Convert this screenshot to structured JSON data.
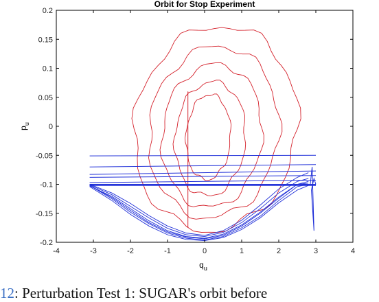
{
  "chart_data": {
    "type": "line",
    "title": "Orbit for Stop Experiment",
    "xlabel": "q",
    "xlabel_sub": "u",
    "ylabel": "p",
    "ylabel_sub": "u",
    "xlim": [
      -4,
      4
    ],
    "ylim": [
      -0.2,
      0.2
    ],
    "xticks": [
      "-4",
      "-3",
      "-2",
      "-1",
      "0",
      "1",
      "2",
      "3",
      "4"
    ],
    "yticks": [
      "-0.2",
      "-0.15",
      "-0.1",
      "-0.05",
      "0",
      "0.05",
      "0.1",
      "0.15",
      "0.2"
    ],
    "grid": false,
    "series_colors": {
      "red": "#d4202a",
      "blue": "#1f2fd8"
    },
    "red_orbits": [
      {
        "center": [
          0.3,
          -0.005
        ],
        "rx": 2.2,
        "ry_top": 0.178,
        "ry_bottom": 0.175
      },
      {
        "center": [
          0.25,
          -0.01
        ],
        "rx": 1.75,
        "ry_top": 0.148,
        "ry_bottom": 0.148
      },
      {
        "center": [
          0.2,
          -0.015
        ],
        "rx": 1.35,
        "ry_top": 0.122,
        "ry_bottom": 0.125
      },
      {
        "center": [
          0.15,
          -0.02
        ],
        "rx": 0.95,
        "ry_top": 0.097,
        "ry_bottom": 0.1
      },
      {
        "center": [
          0.1,
          -0.02
        ],
        "rx": 0.6,
        "ry_top": 0.075,
        "ry_bottom": 0.072
      }
    ],
    "red_vertical_segment": {
      "x": -0.45,
      "y": [
        -0.175,
        0.06
      ]
    },
    "blue_valley_curves": [
      {
        "x": [
          -3.1,
          -2.5,
          -2.0,
          -1.5,
          -1.0,
          -0.5,
          0.0,
          0.5,
          1.0,
          1.5,
          2.0,
          2.5,
          2.8
        ],
        "y": [
          -0.102,
          -0.125,
          -0.148,
          -0.168,
          -0.184,
          -0.193,
          -0.196,
          -0.19,
          -0.175,
          -0.155,
          -0.128,
          -0.104,
          -0.1
        ]
      },
      {
        "x": [
          -3.1,
          -2.5,
          -2.0,
          -1.5,
          -1.0,
          -0.5,
          0.0,
          0.5,
          1.0,
          1.5,
          2.0,
          2.5,
          2.8
        ],
        "y": [
          -0.103,
          -0.121,
          -0.142,
          -0.163,
          -0.18,
          -0.19,
          -0.193,
          -0.186,
          -0.17,
          -0.148,
          -0.122,
          -0.1,
          -0.098
        ]
      },
      {
        "x": [
          -3.1,
          -2.5,
          -2.0,
          -1.5,
          -1.0,
          -0.5,
          0.0,
          0.5,
          1.0,
          1.5,
          2.0,
          2.5,
          2.8
        ],
        "y": [
          -0.101,
          -0.118,
          -0.138,
          -0.158,
          -0.176,
          -0.187,
          -0.19,
          -0.183,
          -0.166,
          -0.142,
          -0.115,
          -0.095,
          -0.09
        ]
      },
      {
        "x": [
          -3.1,
          -2.5,
          -2.0,
          -1.5,
          -1.0,
          -0.5,
          0.0,
          0.5,
          1.0,
          1.5,
          2.0,
          2.5,
          2.8
        ],
        "y": [
          -0.104,
          -0.128,
          -0.152,
          -0.172,
          -0.187,
          -0.195,
          -0.197,
          -0.192,
          -0.178,
          -0.158,
          -0.132,
          -0.11,
          -0.102
        ]
      },
      {
        "x": [
          -3.1,
          -2.5,
          -2.0,
          -1.5,
          -1.0,
          -0.5,
          0.0,
          0.5,
          1.0,
          1.5,
          2.0,
          2.5,
          2.8
        ],
        "y": [
          -0.1,
          -0.115,
          -0.133,
          -0.154,
          -0.172,
          -0.184,
          -0.188,
          -0.18,
          -0.162,
          -0.136,
          -0.108,
          -0.088,
          -0.08
        ]
      },
      {
        "x": [
          -3.1,
          -2.5,
          -2.0,
          -1.5,
          -1.0,
          -0.5,
          0.0,
          0.5,
          1.0,
          1.5,
          2.0,
          2.5,
          2.8
        ],
        "y": [
          -0.102,
          -0.123,
          -0.145,
          -0.166,
          -0.182,
          -0.191,
          -0.194,
          -0.188,
          -0.172,
          -0.15,
          -0.124,
          -0.1,
          -0.095
        ]
      }
    ],
    "blue_horizontal_lines": [
      {
        "x": [
          -3.1,
          3.0
        ],
        "y": [
          -0.051,
          -0.05
        ]
      },
      {
        "x": [
          -3.1,
          3.0
        ],
        "y": [
          -0.07,
          -0.066
        ]
      },
      {
        "x": [
          -3.1,
          3.0
        ],
        "y": [
          -0.083,
          -0.077
        ]
      },
      {
        "x": [
          -3.1,
          3.0
        ],
        "y": [
          -0.088,
          -0.085
        ]
      },
      {
        "x": [
          -3.1,
          3.0
        ],
        "y": [
          -0.097,
          -0.093
        ]
      },
      {
        "x": [
          -3.1,
          3.0
        ],
        "y": [
          -0.1,
          -0.1
        ]
      },
      {
        "x": [
          -3.1,
          3.0
        ],
        "y": [
          -0.101,
          -0.101
        ]
      },
      {
        "x": [
          -3.1,
          3.0
        ],
        "y": [
          -0.102,
          -0.102
        ]
      }
    ],
    "blue_spike": {
      "x": [
        2.85,
        2.9,
        2.95,
        2.88,
        2.95,
        3.0
      ],
      "y": [
        -0.1,
        -0.07,
        -0.18,
        -0.11,
        -0.09,
        -0.1
      ]
    }
  },
  "caption": {
    "number": "12",
    "text": ": Perturbation Test 1: SUGAR's orbit before"
  }
}
